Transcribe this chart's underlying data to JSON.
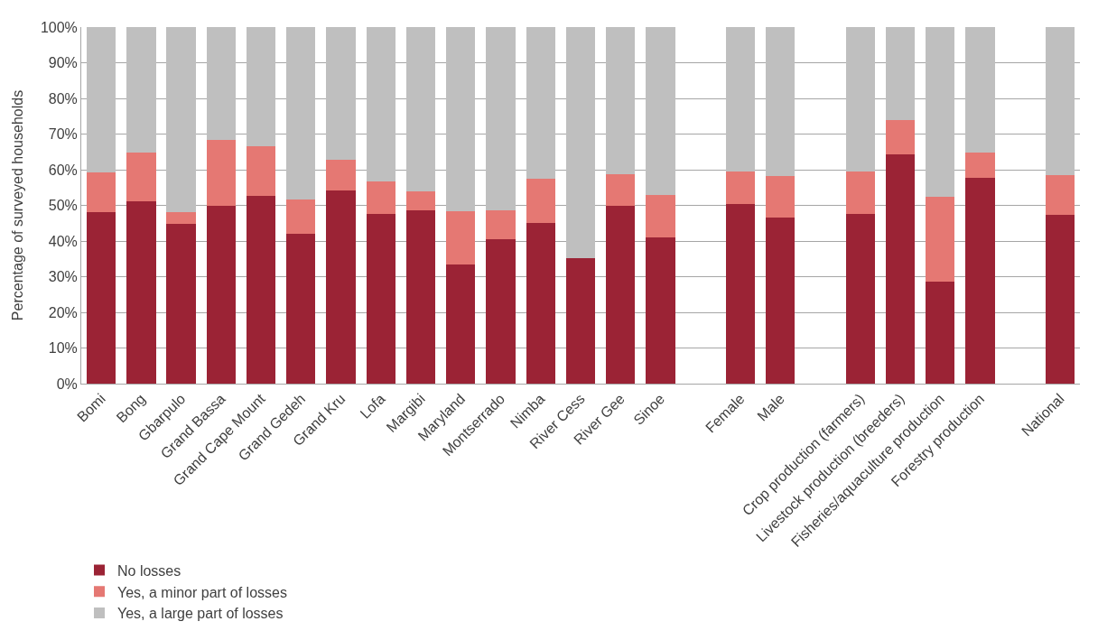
{
  "chart_data": {
    "type": "bar",
    "stacked": true,
    "ylabel": "Percentage of surveyed households",
    "categories": [
      "Bomi",
      "Bong",
      "Gbarpulo",
      "Grand Bassa",
      "Grand Cape Mount",
      "Grand Gedeh",
      "Grand Kru",
      "Lofa",
      "Margibi",
      "Maryland",
      "Montserrado",
      "Nimba",
      "River Cess",
      "River Gee",
      "Sinoe",
      null,
      "Female",
      "Male",
      null,
      "Crop production (farmers)",
      "Livestock production (breeders)",
      "Fisheries/aquaculture production",
      "Forestry production",
      null,
      "National"
    ],
    "series": [
      {
        "name": "No losses",
        "color": "#9b2335",
        "values": [
          48,
          51.2,
          44.8,
          50,
          52.7,
          42,
          54.3,
          47.5,
          48.5,
          33.5,
          40.6,
          45,
          35.3,
          50,
          41,
          null,
          50.5,
          46.5,
          null,
          47.5,
          64.3,
          28.5,
          57.8,
          null,
          47.3
        ]
      },
      {
        "name": "Yes, a minor part of losses",
        "color": "#e57873",
        "values": [
          11.3,
          13.6,
          3.2,
          18.4,
          13.8,
          9.6,
          8.6,
          9.2,
          5.4,
          14.8,
          7.9,
          12.5,
          0,
          8.8,
          11.8,
          null,
          9.1,
          11.8,
          null,
          11.9,
          9.7,
          23.8,
          6.9,
          null,
          11.3
        ]
      },
      {
        "name": "Yes, a large part of losses",
        "color": "#bfbfbf",
        "values": [
          40.7,
          35.2,
          52,
          31.6,
          33.5,
          48.4,
          37.1,
          43.3,
          46.1,
          51.7,
          51.5,
          42.5,
          64.7,
          41.2,
          47.2,
          null,
          40.4,
          41.7,
          null,
          40.6,
          26,
          47.7,
          35.3,
          null,
          41.4
        ]
      }
    ],
    "ylim": [
      0,
      100
    ],
    "yticks": [
      {
        "value": 0,
        "label": "0%"
      },
      {
        "value": 10,
        "label": "10%"
      },
      {
        "value": 20,
        "label": "20%"
      },
      {
        "value": 30,
        "label": "30%"
      },
      {
        "value": 40,
        "label": "40%"
      },
      {
        "value": 50,
        "label": "50%"
      },
      {
        "value": 60,
        "label": "60%"
      },
      {
        "value": 70,
        "label": "70%"
      },
      {
        "value": 80,
        "label": "80%"
      },
      {
        "value": 90,
        "label": "90%"
      },
      {
        "value": 100,
        "label": "100%"
      }
    ],
    "grid": "y",
    "legend": "bottom left"
  }
}
